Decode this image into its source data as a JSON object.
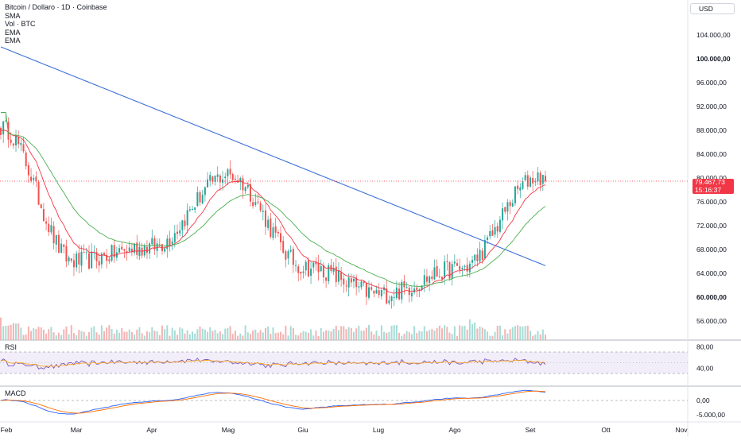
{
  "header": {
    "symbol_title": "Bitcoin / Dollaro · 1D · Coinbase",
    "indicators": [
      "SMA",
      "Vol · BTC",
      "EMA",
      "EMA"
    ]
  },
  "currency_button": "USD",
  "price_axis": {
    "labels": [
      "104.000,00",
      "100.000,00",
      "96.000,00",
      "92.000,00",
      "88.000,00",
      "84.000,00",
      "80.000,00",
      "76.000,00",
      "72.000,00",
      "68.000,00",
      "64.000,00",
      "60.000,00",
      "56.000,00"
    ],
    "bold_labels": [
      "100.000,00",
      "60.000,00"
    ]
  },
  "last_price": {
    "value": "79.467,73",
    "countdown": "15:16:37"
  },
  "rsi_pane": {
    "label": "RSI",
    "axis_labels": [
      "80,00",
      "40,00"
    ]
  },
  "macd_pane": {
    "label": "MACD",
    "axis_labels": [
      "0,00",
      "-5.000,00"
    ]
  },
  "time_axis": {
    "labels": [
      "Feb",
      "Mar",
      "Apr",
      "Mag",
      "Giu",
      "Lug",
      "Ago",
      "Set",
      "Ott",
      "Nov"
    ]
  },
  "colors": {
    "up": "#26a69a",
    "down": "#ef5350",
    "sma": "#3d6fd9",
    "ema_fast": "#f23645",
    "ema_slow": "#4caf50",
    "rsi": "#7e57c2",
    "rsi_ma": "#f9a825",
    "macd": "#2962ff",
    "signal": "#ff6d00"
  },
  "chart_data": {
    "type": "candlestick",
    "x_range": [
      "Feb",
      "Nov"
    ],
    "ylim": [
      54000,
      108000
    ],
    "close_waypoints": [
      {
        "date": "Feb",
        "close": 88500
      },
      {
        "date": "Mar",
        "close": 66000
      },
      {
        "date": "Apr",
        "close": 68500
      },
      {
        "date": "Mag",
        "close": 80500
      },
      {
        "date": "Giu",
        "close": 65000
      },
      {
        "date": "Lug",
        "close": 60500
      },
      {
        "date": "Ago",
        "close": 64800
      },
      {
        "date": "Set",
        "close": 80200
      }
    ],
    "last_price": 79467.73,
    "indicators": [
      "SMA",
      "EMA",
      "EMA",
      "Volume",
      "RSI",
      "MACD"
    ]
  }
}
